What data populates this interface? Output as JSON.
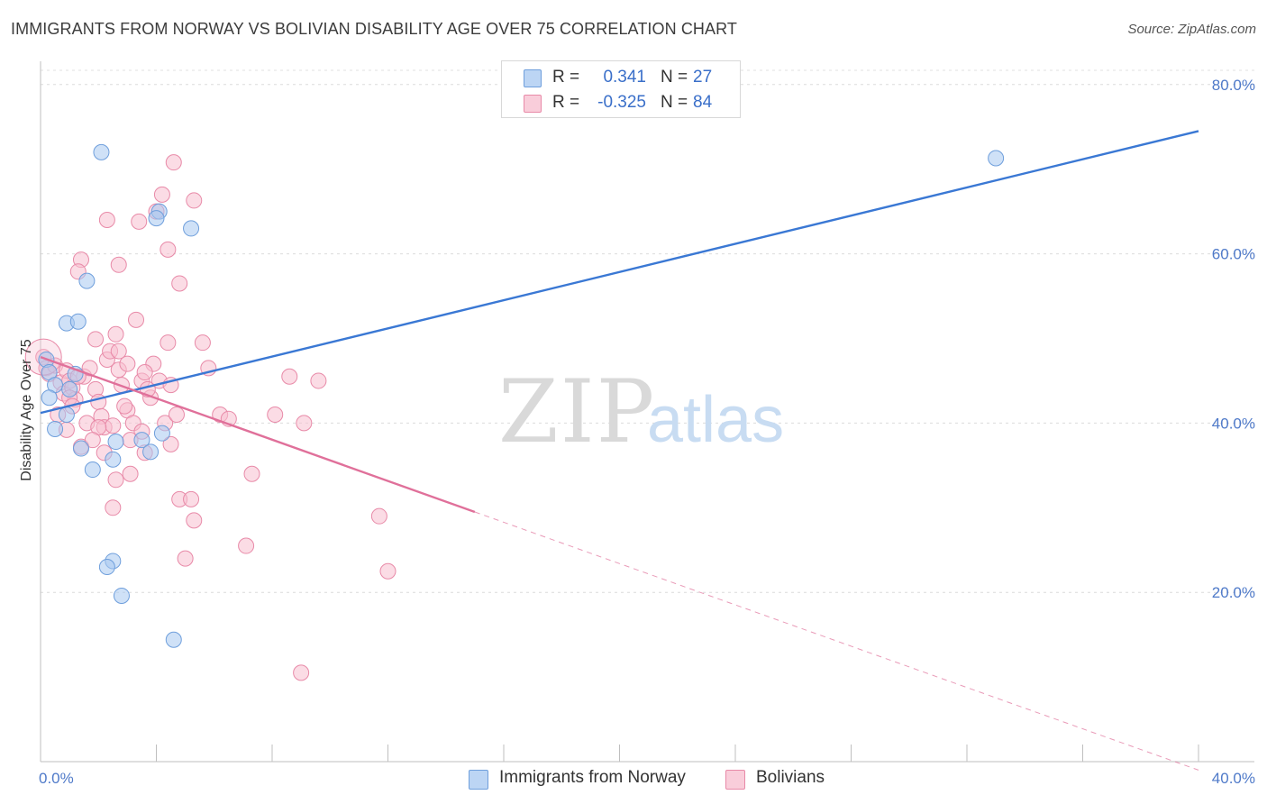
{
  "header": {
    "title": "IMMIGRANTS FROM NORWAY VS BOLIVIAN DISABILITY AGE OVER 75 CORRELATION CHART",
    "source": "Source: ZipAtlas.com"
  },
  "watermark": {
    "zip": "ZIP",
    "atlas": "atlas"
  },
  "legend": {
    "rows": [
      {
        "r_label": "R =",
        "r_value": "0.341",
        "n_label": "N =",
        "n_value": "27",
        "color": "#a8c8f0",
        "stroke": "#6f9fdc"
      },
      {
        "r_label": "R =",
        "r_value": "-0.325",
        "n_label": "N =",
        "n_value": "84",
        "color": "#f7c0d0",
        "stroke": "#e88aa8"
      }
    ]
  },
  "colors": {
    "blue": "#3a78d4",
    "pink": "#e0709a",
    "tick_text": "#4f7ac9"
  },
  "chart_data": {
    "type": "scatter",
    "title": "IMMIGRANTS FROM NORWAY VS BOLIVIAN DISABILITY AGE OVER 75 CORRELATION CHART",
    "xlabel": "",
    "ylabel": "Disability Age Over 75",
    "xlim": [
      0,
      40
    ],
    "ylim": [
      0,
      82
    ],
    "x_ticks": [
      "0.0%",
      "40.0%"
    ],
    "y_ticks": [
      {
        "value": 20,
        "label": "20.0%"
      },
      {
        "value": 40,
        "label": "40.0%"
      },
      {
        "value": 60,
        "label": "60.0%"
      },
      {
        "value": 80,
        "label": "80.0%"
      }
    ],
    "grid": true,
    "legend_position": "top-center",
    "series": [
      {
        "name": "Immigrants from Norway",
        "color": "#a8c8f0",
        "stroke": "#6f9fdc",
        "points": [
          [
            2.1,
            72.0
          ],
          [
            33.0,
            71.3
          ],
          [
            4.1,
            65.0
          ],
          [
            4.0,
            64.2
          ],
          [
            5.2,
            63.0
          ],
          [
            1.6,
            56.8
          ],
          [
            0.9,
            51.8
          ],
          [
            1.3,
            52.0
          ],
          [
            0.2,
            47.5
          ],
          [
            0.3,
            46.0
          ],
          [
            0.5,
            44.5
          ],
          [
            1.0,
            44.0
          ],
          [
            1.2,
            45.8
          ],
          [
            0.3,
            43.0
          ],
          [
            0.9,
            41.0
          ],
          [
            0.5,
            39.3
          ],
          [
            4.2,
            38.8
          ],
          [
            3.5,
            38.0
          ],
          [
            2.6,
            37.8
          ],
          [
            1.4,
            37.0
          ],
          [
            3.8,
            36.6
          ],
          [
            2.5,
            35.7
          ],
          [
            1.8,
            34.5
          ],
          [
            2.5,
            23.7
          ],
          [
            2.3,
            23.0
          ],
          [
            2.8,
            19.6
          ],
          [
            4.6,
            14.4
          ]
        ],
        "trend": {
          "x": [
            0,
            40
          ],
          "y": [
            41.2,
            74.5
          ]
        }
      },
      {
        "name": "Bolivians",
        "color": "#f7c0d0",
        "stroke": "#e88aa8",
        "points": [
          [
            0.1,
            47.8
          ],
          [
            0.2,
            46.5
          ],
          [
            0.3,
            45.8
          ],
          [
            0.5,
            46.8
          ],
          [
            0.7,
            44.8
          ],
          [
            0.8,
            43.5
          ],
          [
            0.9,
            46.2
          ],
          [
            1.0,
            45.0
          ],
          [
            1.1,
            44.2
          ],
          [
            1.2,
            42.8
          ],
          [
            0.6,
            41.0
          ],
          [
            0.9,
            39.2
          ],
          [
            1.4,
            37.2
          ],
          [
            1.5,
            45.5
          ],
          [
            1.7,
            46.5
          ],
          [
            1.9,
            44.0
          ],
          [
            2.0,
            42.5
          ],
          [
            2.1,
            40.8
          ],
          [
            2.2,
            39.5
          ],
          [
            2.3,
            47.5
          ],
          [
            2.4,
            48.5
          ],
          [
            2.6,
            50.5
          ],
          [
            2.7,
            46.3
          ],
          [
            2.8,
            44.5
          ],
          [
            3.0,
            41.5
          ],
          [
            3.2,
            40.0
          ],
          [
            3.3,
            52.2
          ],
          [
            3.5,
            39.0
          ],
          [
            3.6,
            36.5
          ],
          [
            3.8,
            43.0
          ],
          [
            3.9,
            47.0
          ],
          [
            4.1,
            45.0
          ],
          [
            4.3,
            40.0
          ],
          [
            4.4,
            49.5
          ],
          [
            4.5,
            37.5
          ],
          [
            4.7,
            41.0
          ],
          [
            4.8,
            31.0
          ],
          [
            5.0,
            24.0
          ],
          [
            5.2,
            31.0
          ],
          [
            5.3,
            28.5
          ],
          [
            5.6,
            49.5
          ],
          [
            5.8,
            46.5
          ],
          [
            6.2,
            41.0
          ],
          [
            6.5,
            40.5
          ],
          [
            7.1,
            25.5
          ],
          [
            7.3,
            34.0
          ],
          [
            8.1,
            41.0
          ],
          [
            8.6,
            45.5
          ],
          [
            9.1,
            40.0
          ],
          [
            9.6,
            45.0
          ],
          [
            11.7,
            29.0
          ],
          [
            12.0,
            22.5
          ],
          [
            9.0,
            10.5
          ],
          [
            4.4,
            60.5
          ],
          [
            4.6,
            70.8
          ],
          [
            4.2,
            67.0
          ],
          [
            5.3,
            66.3
          ],
          [
            4.8,
            56.5
          ],
          [
            2.3,
            64.0
          ],
          [
            3.4,
            63.8
          ],
          [
            2.7,
            58.7
          ],
          [
            1.4,
            59.3
          ],
          [
            1.3,
            57.9
          ],
          [
            4.0,
            65.0
          ],
          [
            1.9,
            49.9
          ],
          [
            2.7,
            48.5
          ],
          [
            3.0,
            47.0
          ],
          [
            3.5,
            45.0
          ],
          [
            1.0,
            43.0
          ],
          [
            2.5,
            39.7
          ],
          [
            2.6,
            33.3
          ],
          [
            3.1,
            34.0
          ],
          [
            2.5,
            30.0
          ],
          [
            1.6,
            40.0
          ],
          [
            3.1,
            38.0
          ],
          [
            3.7,
            44.0
          ],
          [
            2.0,
            39.5
          ],
          [
            1.8,
            38.0
          ],
          [
            2.2,
            36.5
          ],
          [
            2.9,
            42.0
          ],
          [
            3.6,
            46.0
          ],
          [
            4.5,
            44.5
          ],
          [
            1.3,
            45.5
          ],
          [
            1.1,
            42.0
          ]
        ],
        "trend": {
          "x": [
            0,
            15
          ],
          "y": [
            47.8,
            29.5
          ]
        },
        "trend_extension": {
          "x": [
            15,
            40
          ],
          "y": [
            29.5,
            -1.0
          ]
        }
      }
    ]
  },
  "bottom_legend": {
    "items": [
      {
        "label": "Immigrants from Norway",
        "color": "#a8c8f0",
        "stroke": "#6f9fdc"
      },
      {
        "label": "Bolivians",
        "color": "#f7c0d0",
        "stroke": "#e88aa8"
      }
    ]
  }
}
